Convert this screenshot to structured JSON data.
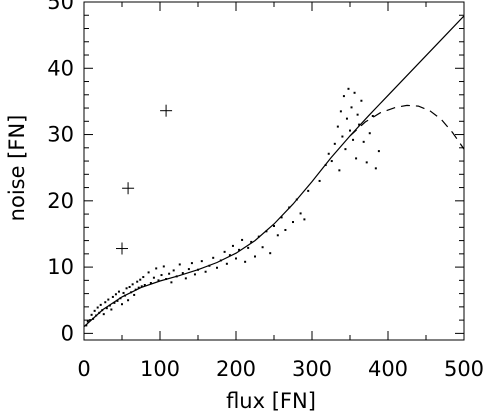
{
  "chart_data": {
    "type": "scatter",
    "xlabel": "flux [FN]",
    "ylabel": "noise [FN]",
    "xlim": [
      0,
      500
    ],
    "ylim": [
      -1,
      50
    ],
    "x_ticks": [
      0,
      100,
      200,
      300,
      400,
      500
    ],
    "y_ticks": [
      0,
      10,
      20,
      30,
      40,
      50
    ],
    "grid": false,
    "series": [
      {
        "style": "dots",
        "points": [
          [
            3,
            1.2
          ],
          [
            5,
            1.8
          ],
          [
            8,
            2.0
          ],
          [
            10,
            2.8
          ],
          [
            12,
            2.2
          ],
          [
            14,
            3.4
          ],
          [
            16,
            2.7
          ],
          [
            18,
            3.9
          ],
          [
            20,
            3.1
          ],
          [
            22,
            4.3
          ],
          [
            24,
            3.5
          ],
          [
            26,
            2.9
          ],
          [
            28,
            4.7
          ],
          [
            30,
            3.8
          ],
          [
            32,
            5.1
          ],
          [
            34,
            4.2
          ],
          [
            36,
            3.6
          ],
          [
            38,
            5.5
          ],
          [
            40,
            4.6
          ],
          [
            42,
            5.9
          ],
          [
            44,
            4.9
          ],
          [
            46,
            6.3
          ],
          [
            48,
            5.3
          ],
          [
            50,
            4.4
          ],
          [
            52,
            6.1
          ],
          [
            54,
            5.7
          ],
          [
            56,
            6.8
          ],
          [
            58,
            5.0
          ],
          [
            60,
            7.0
          ],
          [
            62,
            6.2
          ],
          [
            64,
            7.4
          ],
          [
            66,
            5.8
          ],
          [
            68,
            6.6
          ],
          [
            70,
            7.8
          ],
          [
            72,
            6.9
          ],
          [
            74,
            8.1
          ],
          [
            76,
            7.1
          ],
          [
            78,
            8.5
          ],
          [
            80,
            7.3
          ],
          [
            85,
            9.2
          ],
          [
            88,
            7.6
          ],
          [
            92,
            8.4
          ],
          [
            95,
            9.8
          ],
          [
            98,
            8.0
          ],
          [
            102,
            8.8
          ],
          [
            105,
            10.1
          ],
          [
            108,
            8.2
          ],
          [
            112,
            9.0
          ],
          [
            115,
            7.7
          ],
          [
            118,
            9.5
          ],
          [
            122,
            8.6
          ],
          [
            126,
            10.4
          ],
          [
            130,
            9.1
          ],
          [
            134,
            8.3
          ],
          [
            138,
            9.7
          ],
          [
            142,
            10.6
          ],
          [
            146,
            8.9
          ],
          [
            150,
            9.6
          ],
          [
            155,
            10.9
          ],
          [
            160,
            9.3
          ],
          [
            165,
            10.2
          ],
          [
            170,
            11.4
          ],
          [
            175,
            9.9
          ],
          [
            180,
            11.0
          ],
          [
            185,
            12.3
          ],
          [
            188,
            10.5
          ],
          [
            192,
            11.8
          ],
          [
            196,
            13.2
          ],
          [
            200,
            11.3
          ],
          [
            204,
            12.6
          ],
          [
            208,
            14.1
          ],
          [
            212,
            10.8
          ],
          [
            216,
            12.9
          ],
          [
            220,
            13.8
          ],
          [
            225,
            11.6
          ],
          [
            230,
            14.6
          ],
          [
            235,
            13.0
          ],
          [
            240,
            15.4
          ],
          [
            245,
            12.1
          ],
          [
            250,
            16.2
          ],
          [
            255,
            14.8
          ],
          [
            260,
            17.5
          ],
          [
            265,
            15.6
          ],
          [
            270,
            19.0
          ],
          [
            275,
            16.8
          ],
          [
            280,
            20.2
          ],
          [
            285,
            18.1
          ],
          [
            290,
            17.2
          ],
          [
            295,
            21.5
          ],
          [
            310,
            23.0
          ],
          [
            318,
            25.4
          ],
          [
            322,
            27.1
          ],
          [
            326,
            26.0
          ],
          [
            330,
            28.6
          ],
          [
            334,
            31.2
          ],
          [
            336,
            24.6
          ],
          [
            338,
            33.5
          ],
          [
            340,
            29.7
          ],
          [
            342,
            35.8
          ],
          [
            344,
            27.8
          ],
          [
            346,
            32.4
          ],
          [
            348,
            36.9
          ],
          [
            350,
            30.6
          ],
          [
            352,
            34.1
          ],
          [
            354,
            29.2
          ],
          [
            356,
            36.3
          ],
          [
            358,
            26.4
          ],
          [
            360,
            33.0
          ],
          [
            362,
            31.5
          ],
          [
            365,
            35.1
          ],
          [
            368,
            28.9
          ],
          [
            372,
            25.8
          ],
          [
            376,
            30.2
          ],
          [
            380,
            32.8
          ],
          [
            384,
            24.9
          ],
          [
            388,
            27.5
          ]
        ]
      },
      {
        "style": "plus",
        "points": [
          [
            50,
            12.8
          ],
          [
            58,
            21.9
          ],
          [
            108,
            33.6
          ]
        ]
      },
      {
        "style": "solid-line",
        "x": [
          0,
          25,
          50,
          75,
          100,
          125,
          150,
          175,
          200,
          225,
          250,
          275,
          300,
          325,
          350,
          375,
          400,
          425,
          450,
          475,
          500
        ],
        "y": [
          1.0,
          3.6,
          5.5,
          6.9,
          7.9,
          8.7,
          9.6,
          10.7,
          12.1,
          14.0,
          16.5,
          19.5,
          22.9,
          26.5,
          29.8,
          32.9,
          35.9,
          38.9,
          41.9,
          44.9,
          47.9
        ]
      },
      {
        "style": "dashed-line",
        "x": [
          350,
          370,
          390,
          410,
          425,
          440,
          455,
          470,
          485,
          500
        ],
        "y": [
          29.8,
          31.9,
          33.3,
          34.1,
          34.4,
          34.3,
          33.6,
          32.3,
          30.3,
          27.8
        ]
      }
    ]
  }
}
